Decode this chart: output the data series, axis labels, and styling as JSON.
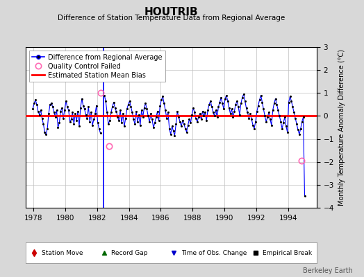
{
  "title": "HOUTRIB",
  "subtitle": "Difference of Station Temperature Data from Regional Average",
  "ylabel": "Monthly Temperature Anomaly Difference (°C)",
  "xlabel_years": [
    1978,
    1980,
    1982,
    1984,
    1986,
    1988,
    1990,
    1992,
    1994
  ],
  "ylim": [
    -4,
    3
  ],
  "xmin": 1977.5,
  "xmax": 1995.8,
  "bias_value": 0.0,
  "line_color": "#0000FF",
  "dot_color": "#000000",
  "bias_color": "#FF0000",
  "qc_color": "#FF69B4",
  "bg_color": "#D8D8D8",
  "plot_bg": "#FFFFFF",
  "grid_color": "#C0C0C0",
  "watermark": "Berkeley Earth",
  "legend1_items": [
    "Difference from Regional Average",
    "Quality Control Failed",
    "Estimated Station Mean Bias"
  ],
  "legend2_items": [
    "Station Move",
    "Record Gap",
    "Time of Obs. Change",
    "Empirical Break"
  ],
  "time_obs_change_year": 1982.42,
  "qc_failed_points": [
    [
      1982.25,
      1.0
    ],
    [
      1982.75,
      -1.3
    ],
    [
      1994.83,
      -1.95
    ]
  ],
  "data": [
    [
      1977.958,
      0.3
    ],
    [
      1978.042,
      0.55
    ],
    [
      1978.125,
      0.7
    ],
    [
      1978.208,
      0.5
    ],
    [
      1978.292,
      0.2
    ],
    [
      1978.375,
      0.05
    ],
    [
      1978.458,
      0.25
    ],
    [
      1978.542,
      -0.1
    ],
    [
      1978.625,
      -0.35
    ],
    [
      1978.708,
      -0.7
    ],
    [
      1978.792,
      -0.8
    ],
    [
      1978.875,
      -0.55
    ],
    [
      1978.958,
      0.1
    ],
    [
      1979.042,
      0.5
    ],
    [
      1979.125,
      0.55
    ],
    [
      1979.208,
      0.4
    ],
    [
      1979.292,
      0.15
    ],
    [
      1979.375,
      -0.05
    ],
    [
      1979.458,
      0.25
    ],
    [
      1979.542,
      -0.5
    ],
    [
      1979.625,
      -0.3
    ],
    [
      1979.708,
      0.2
    ],
    [
      1979.792,
      0.35
    ],
    [
      1979.875,
      -0.1
    ],
    [
      1979.958,
      0.25
    ],
    [
      1980.042,
      0.65
    ],
    [
      1980.125,
      0.4
    ],
    [
      1980.208,
      0.25
    ],
    [
      1980.292,
      -0.25
    ],
    [
      1980.375,
      -0.15
    ],
    [
      1980.458,
      0.15
    ],
    [
      1980.542,
      -0.35
    ],
    [
      1980.625,
      0.1
    ],
    [
      1980.708,
      -0.2
    ],
    [
      1980.792,
      0.2
    ],
    [
      1980.875,
      -0.45
    ],
    [
      1980.958,
      0.35
    ],
    [
      1981.042,
      0.75
    ],
    [
      1981.125,
      0.45
    ],
    [
      1981.208,
      0.3
    ],
    [
      1981.292,
      0.05
    ],
    [
      1981.375,
      -0.1
    ],
    [
      1981.458,
      0.4
    ],
    [
      1981.542,
      -0.25
    ],
    [
      1981.625,
      0.15
    ],
    [
      1981.708,
      -0.4
    ],
    [
      1981.792,
      -0.15
    ],
    [
      1981.875,
      0.1
    ],
    [
      1981.958,
      0.45
    ],
    [
      1982.042,
      -0.3
    ],
    [
      1982.125,
      -0.55
    ],
    [
      1982.208,
      -0.75
    ],
    [
      1982.458,
      0.9
    ],
    [
      1982.542,
      0.65
    ],
    [
      1982.625,
      0.15
    ],
    [
      1982.708,
      -0.35
    ],
    [
      1982.792,
      -0.2
    ],
    [
      1982.875,
      0.15
    ],
    [
      1982.958,
      0.4
    ],
    [
      1983.042,
      0.6
    ],
    [
      1983.125,
      0.35
    ],
    [
      1983.208,
      0.2
    ],
    [
      1983.292,
      -0.05
    ],
    [
      1983.375,
      -0.2
    ],
    [
      1983.458,
      0.25
    ],
    [
      1983.542,
      -0.3
    ],
    [
      1983.625,
      0.1
    ],
    [
      1983.708,
      -0.45
    ],
    [
      1983.792,
      -0.1
    ],
    [
      1983.875,
      0.3
    ],
    [
      1983.958,
      0.5
    ],
    [
      1984.042,
      0.65
    ],
    [
      1984.125,
      0.4
    ],
    [
      1984.208,
      0.15
    ],
    [
      1984.292,
      -0.15
    ],
    [
      1984.375,
      -0.35
    ],
    [
      1984.458,
      0.2
    ],
    [
      1984.542,
      -0.25
    ],
    [
      1984.625,
      0.05
    ],
    [
      1984.708,
      -0.4
    ],
    [
      1984.792,
      0.25
    ],
    [
      1984.875,
      -0.05
    ],
    [
      1984.958,
      0.35
    ],
    [
      1985.042,
      0.55
    ],
    [
      1985.125,
      0.3
    ],
    [
      1985.208,
      0.0
    ],
    [
      1985.292,
      -0.25
    ],
    [
      1985.375,
      0.1
    ],
    [
      1985.458,
      -0.15
    ],
    [
      1985.542,
      -0.5
    ],
    [
      1985.625,
      -0.3
    ],
    [
      1985.708,
      -0.05
    ],
    [
      1985.792,
      0.2
    ],
    [
      1985.875,
      -0.2
    ],
    [
      1985.958,
      0.45
    ],
    [
      1986.042,
      0.7
    ],
    [
      1986.125,
      0.85
    ],
    [
      1986.208,
      0.55
    ],
    [
      1986.292,
      0.25
    ],
    [
      1986.375,
      -0.1
    ],
    [
      1986.458,
      0.15
    ],
    [
      1986.542,
      -0.55
    ],
    [
      1986.625,
      -0.8
    ],
    [
      1986.708,
      -0.45
    ],
    [
      1986.792,
      -0.65
    ],
    [
      1986.875,
      -0.85
    ],
    [
      1986.958,
      -0.35
    ],
    [
      1987.042,
      0.2
    ],
    [
      1987.125,
      -0.05
    ],
    [
      1987.208,
      -0.25
    ],
    [
      1987.292,
      -0.45
    ],
    [
      1987.375,
      -0.2
    ],
    [
      1987.458,
      -0.35
    ],
    [
      1987.542,
      -0.55
    ],
    [
      1987.625,
      -0.7
    ],
    [
      1987.708,
      -0.4
    ],
    [
      1987.792,
      -0.15
    ],
    [
      1987.875,
      -0.3
    ],
    [
      1987.958,
      0.05
    ],
    [
      1988.042,
      0.35
    ],
    [
      1988.125,
      0.15
    ],
    [
      1988.208,
      -0.1
    ],
    [
      1988.292,
      -0.25
    ],
    [
      1988.375,
      -0.05
    ],
    [
      1988.458,
      0.1
    ],
    [
      1988.542,
      -0.15
    ],
    [
      1988.625,
      0.2
    ],
    [
      1988.708,
      0.0
    ],
    [
      1988.792,
      0.15
    ],
    [
      1988.875,
      -0.2
    ],
    [
      1988.958,
      0.25
    ],
    [
      1989.042,
      0.5
    ],
    [
      1989.125,
      0.65
    ],
    [
      1989.208,
      0.4
    ],
    [
      1989.292,
      0.15
    ],
    [
      1989.375,
      0.0
    ],
    [
      1989.458,
      0.25
    ],
    [
      1989.542,
      -0.05
    ],
    [
      1989.625,
      0.4
    ],
    [
      1989.708,
      0.6
    ],
    [
      1989.792,
      0.8
    ],
    [
      1989.875,
      0.55
    ],
    [
      1989.958,
      0.3
    ],
    [
      1990.042,
      0.75
    ],
    [
      1990.125,
      0.9
    ],
    [
      1990.208,
      0.65
    ],
    [
      1990.292,
      0.35
    ],
    [
      1990.375,
      0.1
    ],
    [
      1990.458,
      0.3
    ],
    [
      1990.542,
      -0.05
    ],
    [
      1990.625,
      0.2
    ],
    [
      1990.708,
      0.5
    ],
    [
      1990.792,
      0.65
    ],
    [
      1990.875,
      0.4
    ],
    [
      1990.958,
      0.05
    ],
    [
      1991.042,
      0.55
    ],
    [
      1991.125,
      0.8
    ],
    [
      1991.208,
      0.95
    ],
    [
      1991.292,
      0.65
    ],
    [
      1991.375,
      0.35
    ],
    [
      1991.458,
      0.15
    ],
    [
      1991.542,
      -0.1
    ],
    [
      1991.625,
      0.1
    ],
    [
      1991.708,
      -0.15
    ],
    [
      1991.792,
      -0.4
    ],
    [
      1991.875,
      -0.55
    ],
    [
      1991.958,
      -0.25
    ],
    [
      1992.042,
      0.2
    ],
    [
      1992.125,
      0.45
    ],
    [
      1992.208,
      0.7
    ],
    [
      1992.292,
      0.9
    ],
    [
      1992.375,
      0.6
    ],
    [
      1992.458,
      0.3
    ],
    [
      1992.542,
      0.0
    ],
    [
      1992.625,
      -0.25
    ],
    [
      1992.708,
      -0.05
    ],
    [
      1992.792,
      0.15
    ],
    [
      1992.875,
      -0.15
    ],
    [
      1992.958,
      -0.4
    ],
    [
      1993.042,
      0.25
    ],
    [
      1993.125,
      0.55
    ],
    [
      1993.208,
      0.75
    ],
    [
      1993.292,
      0.5
    ],
    [
      1993.375,
      0.25
    ],
    [
      1993.458,
      0.0
    ],
    [
      1993.542,
      -0.25
    ],
    [
      1993.625,
      -0.55
    ],
    [
      1993.708,
      -0.3
    ],
    [
      1993.792,
      -0.05
    ],
    [
      1993.875,
      -0.45
    ],
    [
      1993.958,
      -0.7
    ],
    [
      1994.042,
      0.6
    ],
    [
      1994.125,
      0.85
    ],
    [
      1994.208,
      0.65
    ],
    [
      1994.292,
      0.4
    ],
    [
      1994.375,
      0.15
    ],
    [
      1994.458,
      -0.1
    ],
    [
      1994.542,
      -0.35
    ],
    [
      1994.625,
      -0.6
    ],
    [
      1994.708,
      -0.8
    ],
    [
      1994.792,
      -0.55
    ],
    [
      1994.875,
      -0.25
    ],
    [
      1994.958,
      -0.05
    ],
    [
      1994.958,
      -0.05
    ],
    [
      1995.042,
      -3.5
    ]
  ]
}
